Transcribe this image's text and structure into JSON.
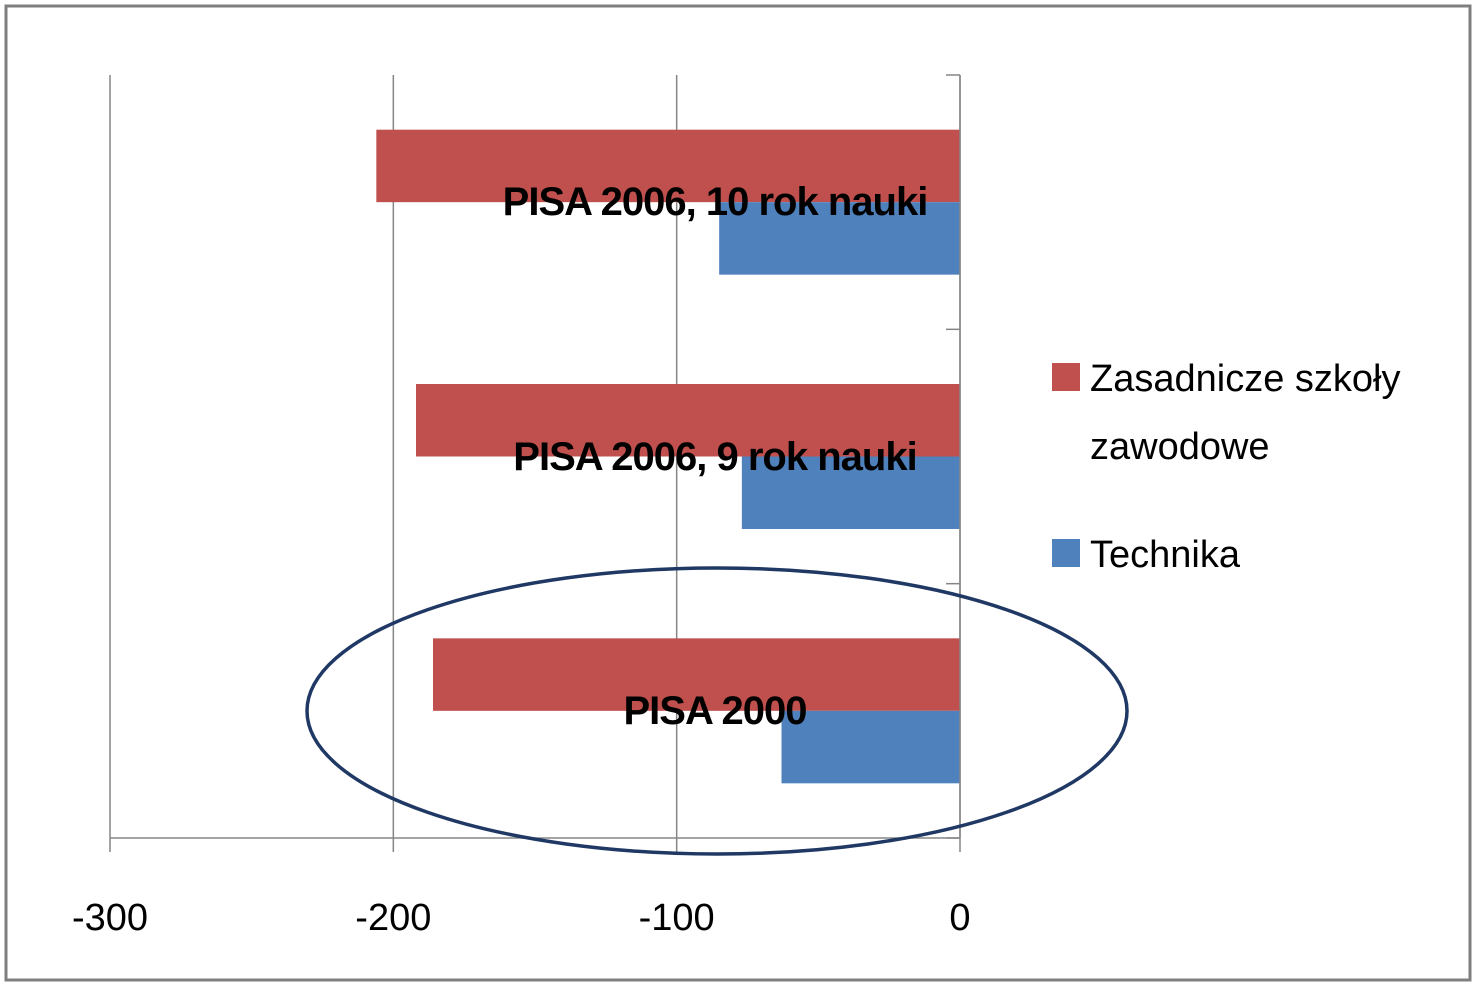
{
  "chart_data": {
    "type": "barh",
    "categories": [
      "PISA 2000",
      "PISA 2006, 9 rok nauki",
      "PISA 2006, 10 rok nauki"
    ],
    "series": [
      {
        "name": "Zasadnicze szkoły zawodowe",
        "color": "#c0504d",
        "values": [
          -186,
          -192,
          -206
        ]
      },
      {
        "name": "Technika",
        "color": "#4f81bd",
        "values": [
          -63,
          -77,
          -85
        ]
      }
    ],
    "xlim": [
      -300,
      0
    ],
    "xticks": [
      -300,
      -200,
      -100,
      0
    ],
    "grid": true,
    "legend": "right"
  }
}
